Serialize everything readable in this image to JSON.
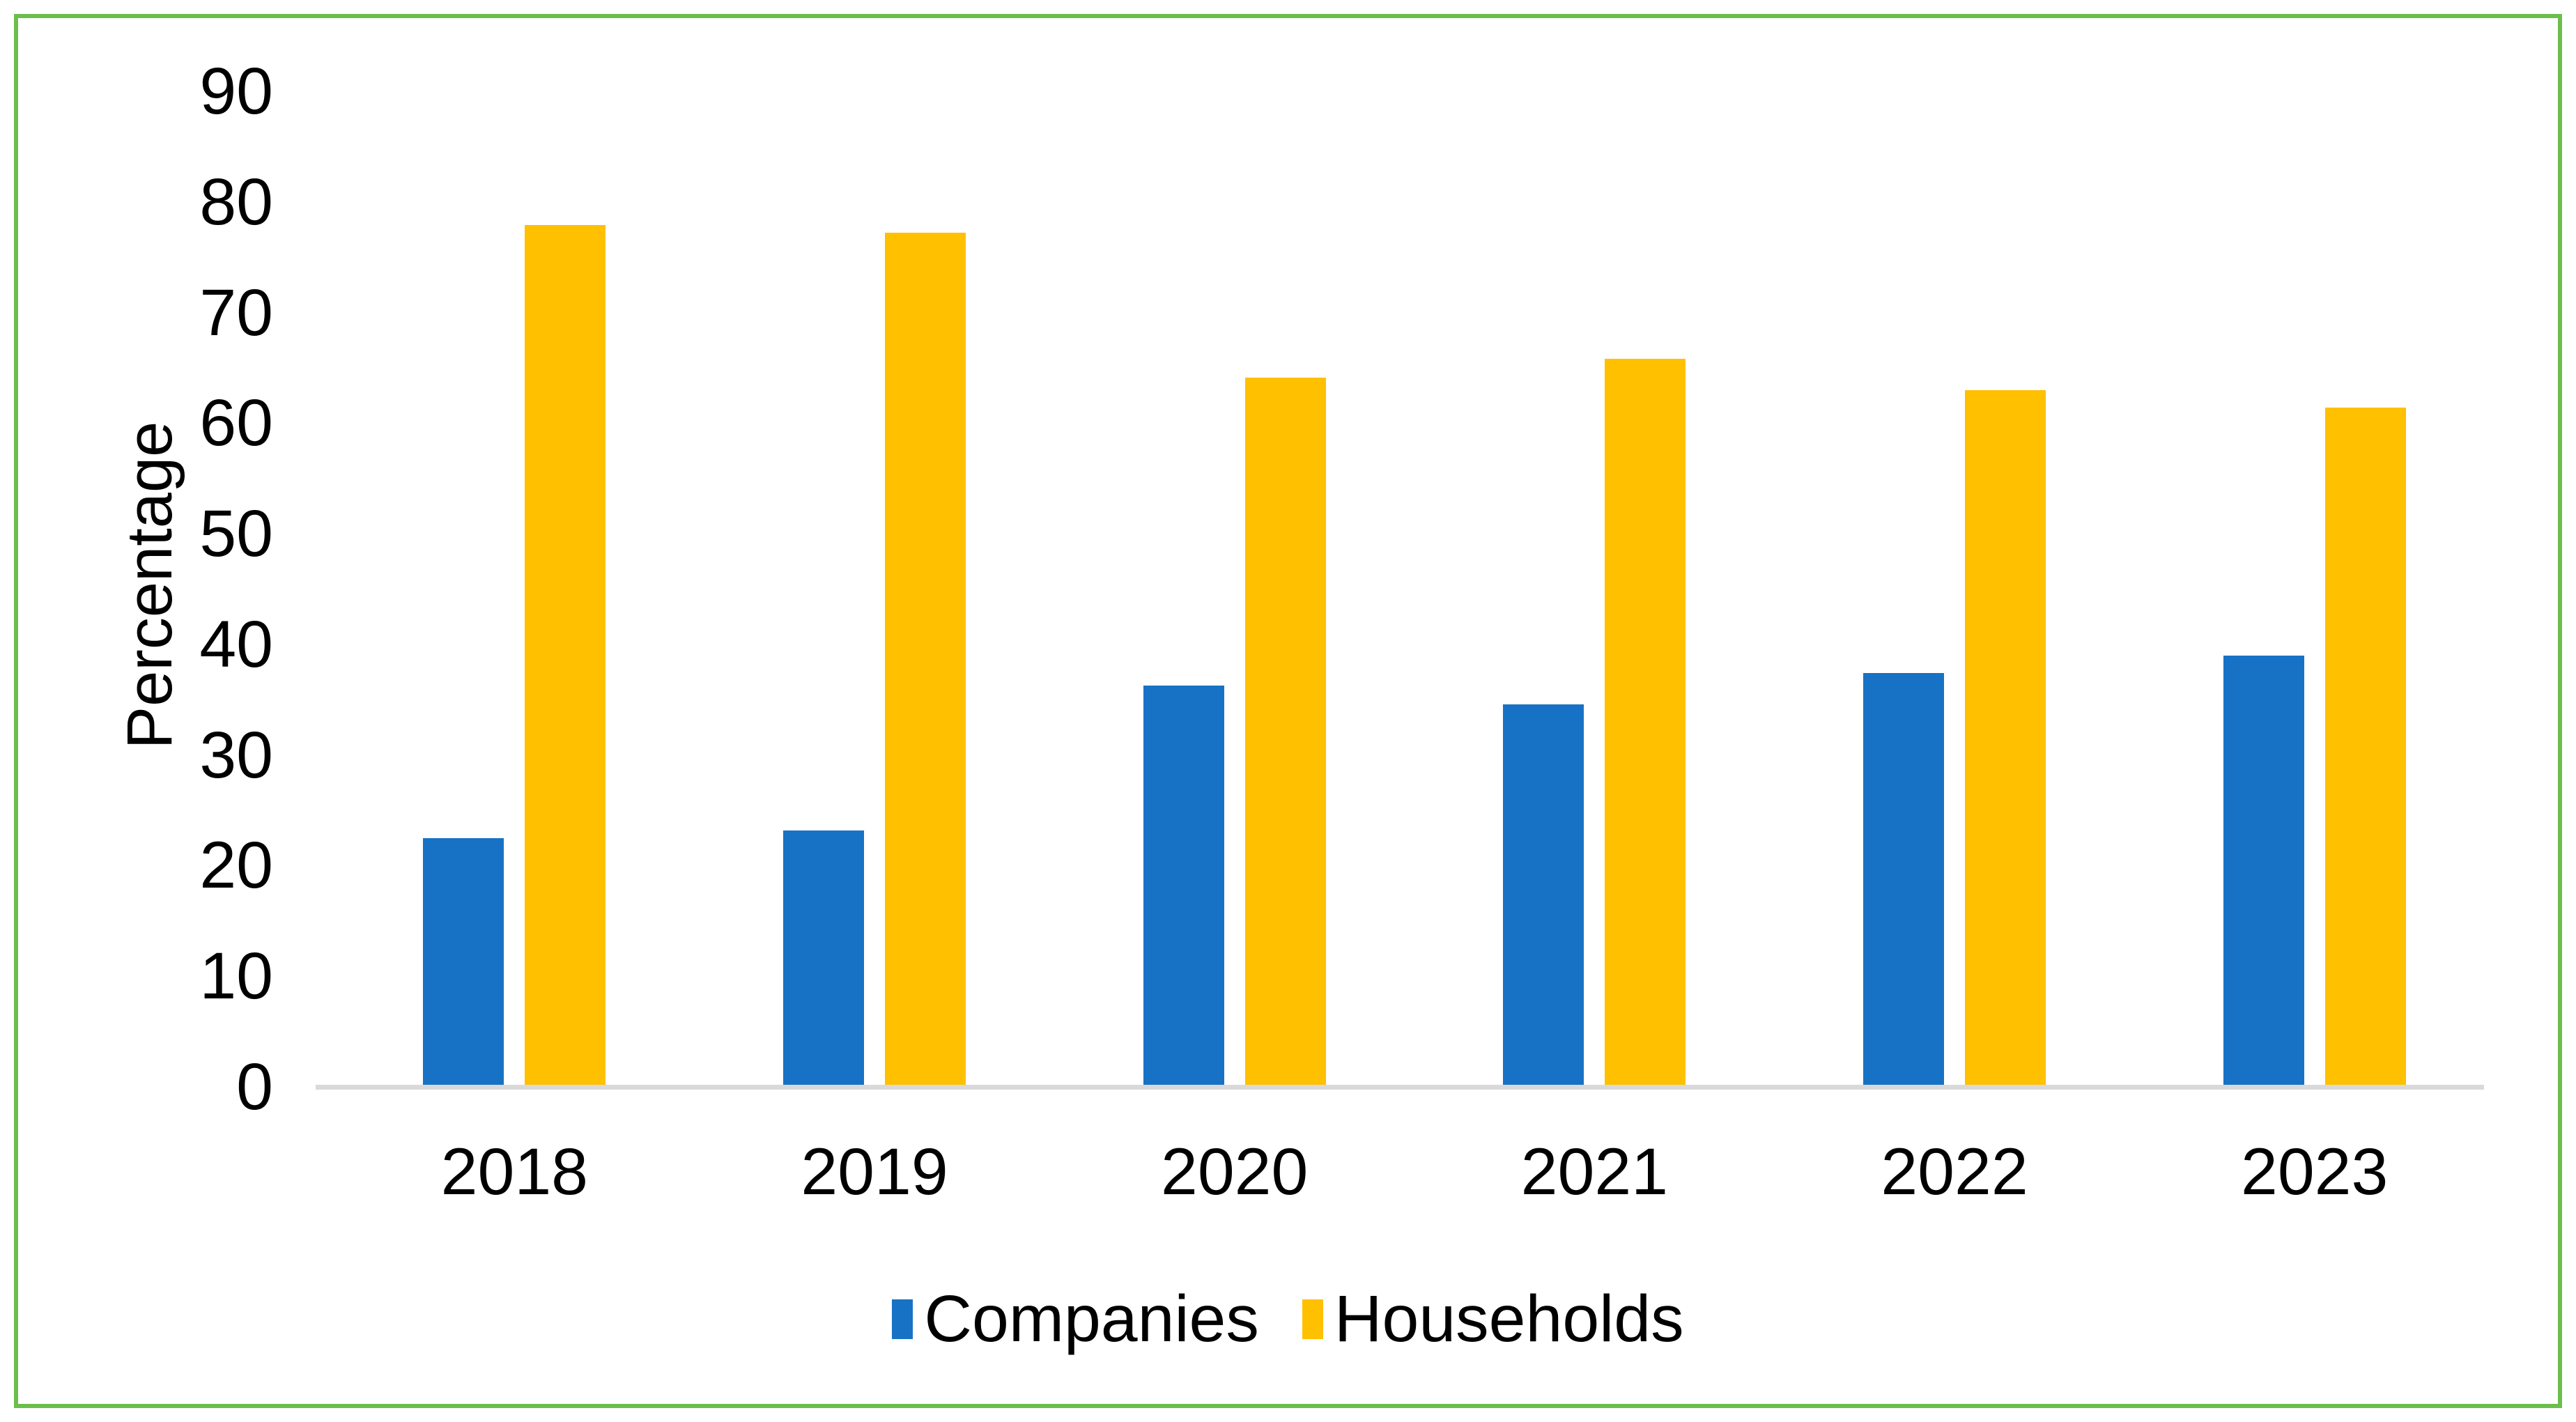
{
  "chart_data": {
    "type": "bar",
    "title": "",
    "categories": [
      "2018",
      "2019",
      "2020",
      "2021",
      "2022",
      "2023"
    ],
    "series": [
      {
        "name": "Companies",
        "color": "#1772C5",
        "values": [
          22.3,
          23.0,
          36.1,
          34.4,
          37.2,
          38.8
        ]
      },
      {
        "name": "Households",
        "color": "#FFC000",
        "values": [
          77.7,
          77.0,
          63.9,
          65.6,
          62.8,
          61.2
        ]
      }
    ],
    "xlabel": "",
    "ylabel": "Percentage",
    "ylim": [
      0,
      90
    ],
    "yticks": [
      0,
      10,
      20,
      30,
      40,
      50,
      60,
      70,
      80,
      90
    ],
    "grid": false,
    "legend_position": "bottom"
  },
  "colors": {
    "frame_border": "#6CBE4B",
    "axis_line": "#D9D9D9",
    "text": "#000000"
  }
}
